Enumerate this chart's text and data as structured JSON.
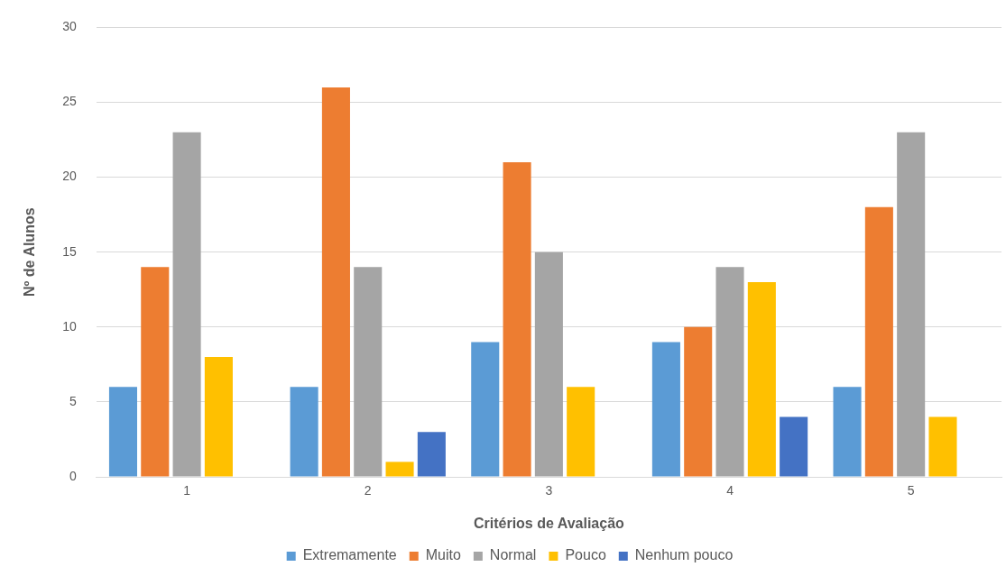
{
  "chart_data": {
    "type": "bar",
    "xlabel": "Critérios de Avaliação",
    "ylabel": "Nº de Alunos",
    "categories": [
      "1",
      "2",
      "3",
      "4",
      "5"
    ],
    "series": [
      {
        "name": "Extremamente",
        "color": "#5b9bd5",
        "values": [
          6,
          6,
          9,
          9,
          6
        ]
      },
      {
        "name": "Muito",
        "color": "#ed7d31",
        "values": [
          14,
          26,
          21,
          10,
          18
        ]
      },
      {
        "name": "Normal",
        "color": "#a5a5a5",
        "values": [
          23,
          14,
          15,
          14,
          23
        ]
      },
      {
        "name": "Pouco",
        "color": "#ffc000",
        "values": [
          8,
          1,
          6,
          13,
          4
        ]
      },
      {
        "name": "Nenhum pouco",
        "color": "#4472c4",
        "values": [
          0,
          3,
          0,
          4,
          0
        ]
      }
    ],
    "ylim": [
      0,
      30
    ],
    "yticks": [
      0,
      5,
      10,
      15,
      20,
      25,
      30
    ],
    "grid": "y",
    "legend": "bottom"
  }
}
